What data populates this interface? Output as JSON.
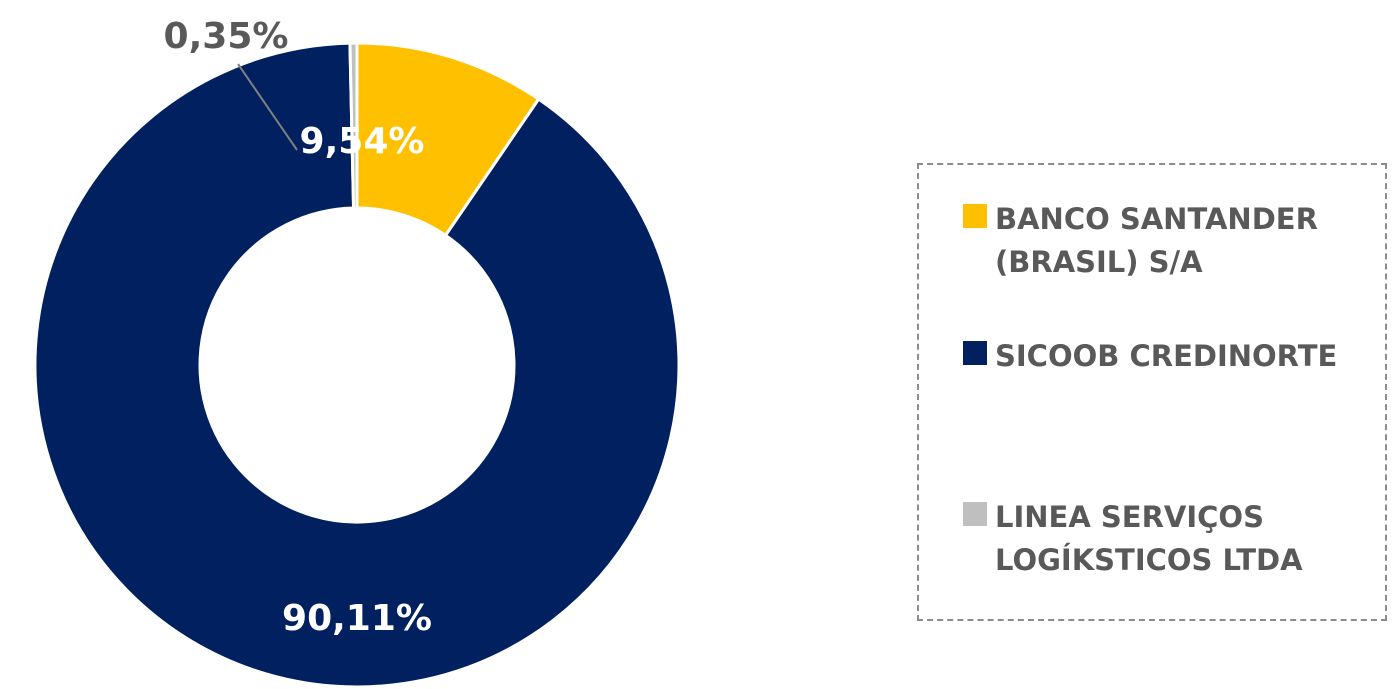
{
  "chart_data": {
    "type": "pie",
    "variant": "donut",
    "title": "",
    "slices": [
      {
        "name": "BANCO SANTANDER (BRASIL) S/A",
        "value": 9.54,
        "label": "9,54%",
        "color": "#FFC000",
        "label_color": "#FFFFFF"
      },
      {
        "name": "SICOOB CREDINORTE",
        "value": 90.11,
        "label": "90,11%",
        "color": "#002060",
        "label_color": "#FFFFFF"
      },
      {
        "name": "LINEA SERVIÇOS LOGÍKSTICOS LTDA",
        "value": 0.35,
        "label": "0,35%",
        "color": "#BFBFBF",
        "label_color": "#595959"
      }
    ],
    "legend": {
      "placement": "right",
      "items": [
        {
          "label": "BANCO SANTANDER (BRASIL) S/A",
          "color": "#FFC000"
        },
        {
          "label": "SICOOB CREDINORTE",
          "color": "#002060"
        },
        {
          "label": "LINEA SERVIÇOS LOGÍKSTICOS LTDA",
          "color": "#BFBFBF"
        }
      ]
    }
  }
}
